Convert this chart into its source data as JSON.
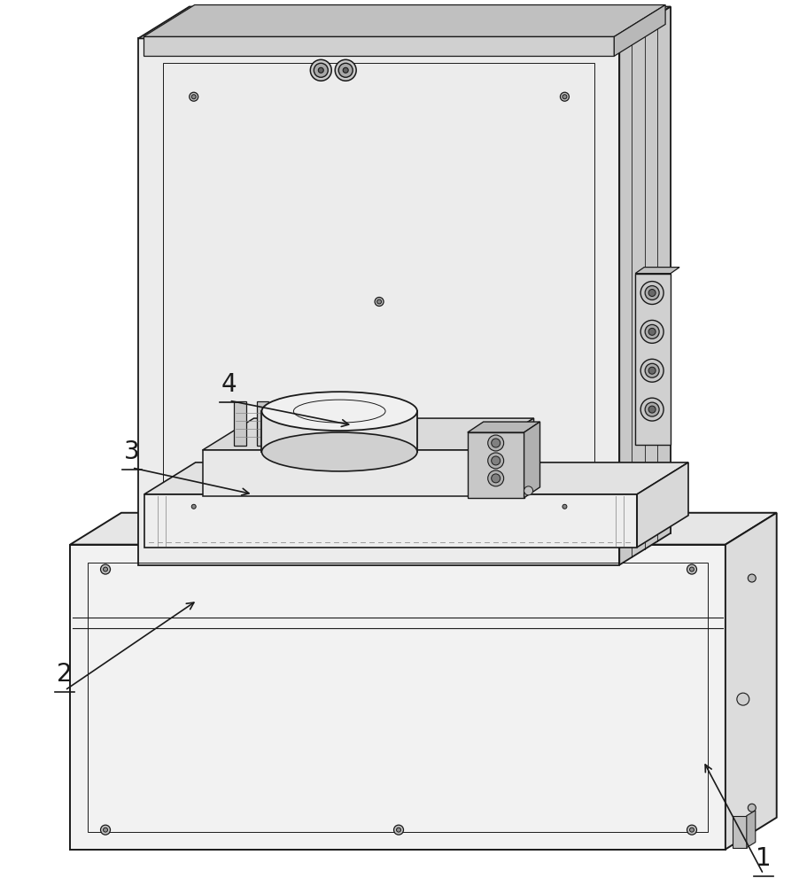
{
  "bg": "#ffffff",
  "lc": "#1a1a1a",
  "face_front": "#f4f4f4",
  "face_top": "#e8e8e8",
  "face_right": "#d4d4d4",
  "face_panel": "#ededed",
  "face_dark": "#c0c0c0",
  "label_1": "1",
  "label_2": "2",
  "label_3": "3",
  "label_4": "4",
  "label_fs": 20,
  "figsize": [
    9.11,
    10.0
  ],
  "dpi": 100
}
